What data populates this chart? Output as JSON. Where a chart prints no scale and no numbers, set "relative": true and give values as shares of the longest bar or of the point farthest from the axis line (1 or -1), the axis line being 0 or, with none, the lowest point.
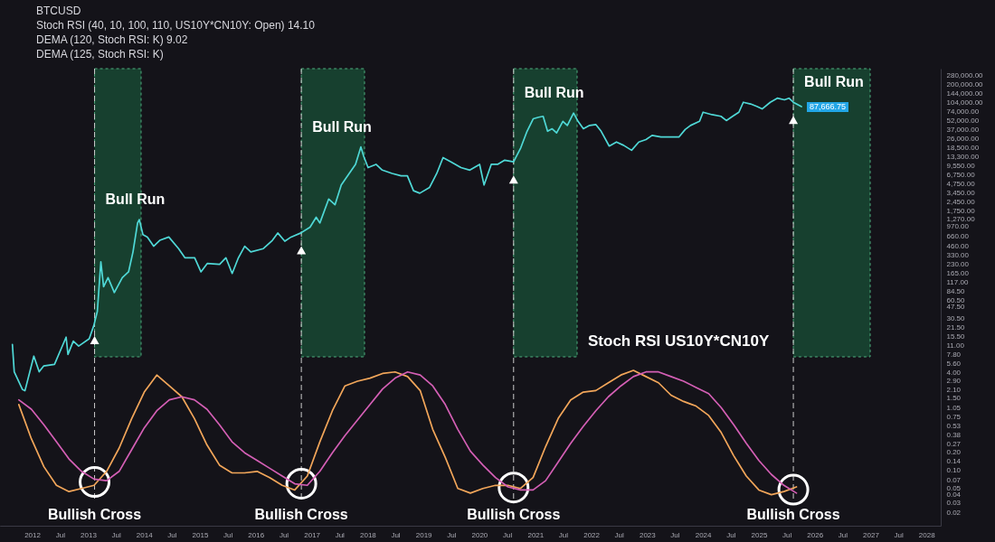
{
  "chart_data": [
    {
      "type": "line",
      "title": "BTCUSD",
      "annotations": [
        "Stoch RSI (40, 10, 100, 110, US10Y*CN10Y: Open) 14.10",
        "DEMA (120, Stoch RSI: K) 9.02",
        "DEMA (125, Stoch RSI: K)"
      ],
      "series": [
        {
          "color": "#4fd8d6",
          "x": [
            "2011-08-25",
            "2011-09-06",
            "2011-10-29",
            "2011-11-15",
            "2012-01-12",
            "2012-02-16",
            "2012-03-16",
            "2012-05-26",
            "2012-08-10",
            "2012-08-22",
            "2012-09-26",
            "2012-10-31",
            "2013-01-08",
            "2013-02-07",
            "2013-03-02",
            "2013-03-25",
            "2013-04-12",
            "2013-05-11",
            "2013-06-21",
            "2013-08-12",
            "2013-09-22",
            "2013-10-21",
            "2013-11-20",
            "2013-12-01",
            "2013-12-25",
            "2014-01-23",
            "2014-03-05",
            "2014-04-14",
            "2014-06-12",
            "2014-08-15",
            "2014-09-25",
            "2014-11-28",
            "2015-01-08",
            "2015-02-18",
            "2015-05-10",
            "2015-06-20",
            "2015-07-31",
            "2015-09-10",
            "2015-10-21",
            "2015-11-30",
            "2016-02-20",
            "2016-04-19",
            "2016-05-24",
            "2016-07-09",
            "2016-08-19",
            "2016-10-22",
            "2016-12-21",
            "2017-01-30",
            "2017-02-23",
            "2017-04-22",
            "2017-06-02",
            "2017-07-13",
            "2017-09-03",
            "2017-10-14",
            "2017-11-18",
            "2017-12-06",
            "2018-01-04",
            "2018-02-25",
            "2018-04-07",
            "2018-06-10",
            "2018-08-08",
            "2018-09-18",
            "2018-10-28",
            "2018-12-08",
            "2019-02-10",
            "2019-03-29",
            "2019-05-09",
            "2019-06-30",
            "2019-09-03",
            "2019-10-31",
            "2020-01-03",
            "2020-02-01",
            "2020-03-19",
            "2020-04-29",
            "2020-06-15",
            "2020-08-12",
            "2020-09-28",
            "2020-11-08",
            "2020-12-18",
            "2021-01-23",
            "2021-02-21",
            "2021-03-22",
            "2021-04-21",
            "2021-05-20",
            "2021-06-30",
            "2021-07-29",
            "2021-09-08",
            "2021-10-07",
            "2021-11-11",
            "2021-12-22",
            "2022-02-01",
            "2022-03-07",
            "2022-04-29",
            "2022-06-15",
            "2022-08-01",
            "2022-09-22",
            "2022-11-08",
            "2022-12-25",
            "2023-02-03",
            "2023-04-02",
            "2023-05-31",
            "2023-07-28",
            "2023-09-07",
            "2023-10-12",
            "2023-12-10",
            "2024-01-02",
            "2024-03-01",
            "2024-04-28",
            "2024-06-02",
            "2024-07-13",
            "2024-08-23",
            "2024-09-21",
            "2024-11-07",
            "2024-12-18",
            "2025-01-22",
            "2025-03-16",
            "2025-05-01",
            "2025-06-17",
            "2025-07-16",
            "2025-08-14",
            "2025-10-06"
          ],
          "values": [
            11.4,
            4.07,
            2.11,
            1.99,
            7.35,
            4.07,
            5.06,
            5.38,
            15.0,
            7.82,
            12.9,
            10.7,
            14.1,
            23.2,
            39.5,
            255,
            100,
            141,
            80.5,
            141,
            175,
            371,
            1100,
            1250,
            712,
            649,
            460,
            573,
            649,
            420,
            298,
            298,
            175,
            240,
            232,
            298,
            165,
            298,
            460,
            371,
            420,
            573,
            757,
            555,
            649,
            757,
            942,
            1370,
            1100,
            2715,
            2185,
            4600,
            7120,
            10000,
            19300,
            13700,
            8860,
            10000,
            8060,
            7120,
            6490,
            6490,
            3710,
            3380,
            4200,
            7120,
            12900,
            11000,
            8860,
            8060,
            10000,
            4600,
            10000,
            10000,
            11700,
            11000,
            18700,
            34800,
            55500,
            59100,
            61000,
            34800,
            38200,
            32700,
            50600,
            43300,
            69000,
            50600,
            38200,
            43300,
            44700,
            34800,
            19900,
            23200,
            20500,
            17000,
            23200,
            25500,
            29800,
            28000,
            28000,
            28000,
            37100,
            43300,
            50600,
            71200,
            64900,
            61000,
            52100,
            61000,
            71200,
            103500,
            97300,
            88500,
            80600,
            103500,
            120800,
            113500,
            120800,
            103500,
            87666.75
          ],
          "value_labels": [
            null,
            null,
            null,
            null,
            null,
            null,
            null,
            null,
            null,
            null,
            null,
            null,
            null,
            null,
            null,
            null,
            null,
            null,
            null,
            null,
            null,
            null,
            null,
            null,
            null,
            null,
            null,
            null,
            null,
            null,
            null,
            null,
            null,
            null,
            null,
            null,
            null,
            null,
            null,
            null,
            null,
            null,
            null,
            null,
            null,
            null,
            null,
            null,
            null,
            null,
            null,
            null,
            null,
            null,
            null,
            null,
            null,
            null,
            null,
            null,
            null,
            null,
            null,
            null,
            null,
            null,
            null,
            null,
            null,
            null,
            null,
            null,
            null,
            null,
            null,
            null,
            null,
            null,
            null,
            null,
            null,
            null,
            null,
            null,
            null,
            null,
            null,
            null,
            null,
            null,
            null,
            null,
            null,
            null,
            null,
            null,
            null,
            null,
            null,
            null,
            null,
            null,
            null,
            null,
            null,
            null,
            null,
            null,
            null,
            null,
            null,
            null,
            null,
            null,
            null,
            null,
            null,
            null,
            null,
            null,
            "87,666.75"
          ]
        }
      ],
      "log": true,
      "xlim": [
        "2011-06-05",
        "2028-04-03"
      ],
      "xticks": [
        "2012",
        {
          "value": "2012-07",
          "label": "Jul"
        },
        "2013",
        {
          "value": "2013-07",
          "label": "Jul"
        },
        "2014",
        {
          "value": "2014-07",
          "label": "Jul"
        },
        "2015",
        {
          "value": "2015-07",
          "label": "Jul"
        },
        "2016",
        {
          "value": "2016-07",
          "label": "Jul"
        },
        "2017",
        {
          "value": "2017-07",
          "label": "Jul"
        },
        "2018",
        {
          "value": "2018-07",
          "label": "Jul"
        },
        "2019",
        {
          "value": "2019-07",
          "label": "Jul"
        },
        "2020",
        {
          "value": "2020-07",
          "label": "Jul"
        },
        "2021",
        {
          "value": "2021-07",
          "label": "Jul"
        },
        "2022",
        {
          "value": "2022-07",
          "label": "Jul"
        },
        "2023",
        {
          "value": "2023-07",
          "label": "Jul"
        },
        "2024",
        {
          "value": "2024-07",
          "label": "Jul"
        },
        "2025",
        {
          "value": "2025-07",
          "label": "Jul"
        },
        "2026",
        {
          "value": "2026-07",
          "label": "Jul"
        },
        "2027",
        {
          "value": "2027-07",
          "label": "Jul"
        },
        "2028"
      ],
      "ylim": [
        0.0124,
        367000
      ],
      "yticks": [
        {
          "value": 280000,
          "label": "280,000.00"
        },
        {
          "value": 200000,
          "label": "200,000.00"
        },
        {
          "value": 144000,
          "label": "144,000.00"
        },
        {
          "value": 104000,
          "label": "104,000.00"
        },
        {
          "value": 74000,
          "label": "74,000.00"
        },
        {
          "value": 52000,
          "label": "52,000.00"
        },
        {
          "value": 37000,
          "label": "37,000.00"
        },
        {
          "value": 26000,
          "label": "26,000.00"
        },
        {
          "value": 18500,
          "label": "18,500.00"
        },
        {
          "value": 13300,
          "label": "13,300.00"
        },
        {
          "value": 9550,
          "label": "9,550.00"
        },
        {
          "value": 6750,
          "label": "6,750.00"
        },
        {
          "value": 4750,
          "label": "4,750.00"
        },
        {
          "value": 3450,
          "label": "3,450.00"
        },
        {
          "value": 2450,
          "label": "2,450.00"
        },
        {
          "value": 1750,
          "label": "1,750.00"
        },
        {
          "value": 1270,
          "label": "1,270.00"
        },
        {
          "value": 970,
          "label": "970.00"
        },
        {
          "value": 660,
          "label": "660.00"
        },
        {
          "value": 460,
          "label": "460.00"
        },
        {
          "value": 330,
          "label": "330.00"
        },
        {
          "value": 230,
          "label": "230.00"
        },
        {
          "value": 165,
          "label": "165.00"
        },
        {
          "value": 117,
          "label": "117.00"
        },
        {
          "value": 84.5,
          "label": "84.50"
        },
        {
          "value": 60.5,
          "label": "60.50"
        },
        {
          "value": 47.5,
          "label": "47.50"
        },
        {
          "value": 30.5,
          "label": "30.50"
        },
        {
          "value": 21.5,
          "label": "21.50"
        },
        {
          "value": 15.5,
          "label": "15.50"
        },
        {
          "value": 11,
          "label": "11.00"
        },
        {
          "value": 7.8,
          "label": "7.80"
        },
        {
          "value": 5.6,
          "label": "5.60"
        },
        {
          "value": 4,
          "label": "4.00"
        },
        {
          "value": 2.9,
          "label": "2.90"
        },
        {
          "value": 2.1,
          "label": "2.10"
        },
        {
          "value": 1.5,
          "label": "1.50"
        },
        {
          "value": 1.05,
          "label": "1.05"
        },
        {
          "value": 0.75,
          "label": "0.75"
        },
        {
          "value": 0.53,
          "label": "0.53"
        },
        {
          "value": 0.38,
          "label": "0.38"
        },
        {
          "value": 0.27,
          "label": "0.27"
        },
        {
          "value": 0.2,
          "label": "0.20"
        },
        {
          "value": 0.14,
          "label": "0.14"
        },
        {
          "value": 0.1,
          "label": "0.10"
        },
        {
          "value": 0.07,
          "label": "0.07"
        },
        {
          "value": 0.05,
          "label": "0.05"
        },
        {
          "value": 0.04,
          "label": "0.04"
        },
        {
          "value": 0.03,
          "label": "0.03"
        },
        {
          "value": 0.02,
          "label": "0.02"
        }
      ],
      "ref_lines": [
        {
          "axis": "x",
          "value": "2013-02-12",
          "label": "Bullish Cross",
          "color": "#cccccc",
          "line_style": "dashed"
        },
        {
          "axis": "x",
          "value": "2016-10-25",
          "label": "Bullish Cross",
          "color": "#cccccc",
          "line_style": "dashed"
        },
        {
          "axis": "x",
          "value": "2020-08-12",
          "label": "Bullish Cross",
          "color": "#cccccc",
          "line_style": "dashed"
        },
        {
          "axis": "x",
          "value": "2025-08-14",
          "label": "Bullish Cross",
          "color": "#cccccc",
          "line_style": "dashed"
        }
      ],
      "bands": [
        {
          "axis": "x",
          "from": "2013-02-12",
          "to": "2013-12-13",
          "label": "Bull Run",
          "color": "#17402f"
        },
        {
          "axis": "x",
          "from": "2016-10-25",
          "to": "2017-12-12",
          "label": "Bull Run",
          "color": "#17402f"
        },
        {
          "axis": "x",
          "from": "2020-08-12",
          "to": "2021-10-01",
          "label": "Bull Run",
          "color": "#17402f"
        },
        {
          "axis": "x",
          "from": "2025-08-14",
          "to": "2026-12-29",
          "label": "Bull Run",
          "color": "#17402f"
        }
      ]
    },
    {
      "type": "line",
      "title": "Stoch RSI US10Y*CN10Y",
      "relative": true,
      "categories": [
        null,
        null,
        null,
        null,
        null,
        null,
        null,
        null,
        null,
        null,
        null,
        null,
        null,
        null,
        null,
        null,
        null,
        null,
        null,
        null,
        null,
        null,
        null,
        null,
        null,
        null,
        null,
        null,
        null,
        null,
        null,
        null,
        null,
        null,
        null,
        null,
        null,
        null,
        null,
        null,
        null,
        null,
        null,
        null,
        null,
        null,
        null,
        null,
        null,
        null,
        null,
        null,
        null,
        null,
        null,
        null,
        null,
        null,
        null,
        null,
        null,
        null,
        null,
        null,
        null,
        null,
        null,
        null,
        null,
        null,
        null,
        null,
        null,
        null,
        null
      ],
      "series": [
        {
          "color": "#f2a65a",
          "values": [
            null,
            0.78,
            0.56,
            0.38,
            0.26,
            0.22,
            0.24,
            0.26,
            0.35,
            0.5,
            0.69,
            0.86,
            0.97,
            0.9,
            0.83,
            0.69,
            0.52,
            0.39,
            0.34,
            0.34,
            0.35,
            0.31,
            0.26,
            0.23,
            0.32,
            0.54,
            0.74,
            0.9,
            0.93,
            0.95,
            0.98,
            0.99,
            0.96,
            0.87,
            0.62,
            0.44,
            0.24,
            0.21,
            0.24,
            0.26,
            0.26,
            0.24,
            0.31,
            0.51,
            0.69,
            0.81,
            0.86,
            0.87,
            0.92,
            0.97,
            1,
            0.96,
            0.92,
            0.84,
            0.8,
            0.77,
            0.71,
            0.6,
            0.45,
            0.32,
            0.23,
            0.2,
            0.22,
            0.25,
            null,
            null,
            null,
            null,
            null,
            null,
            null,
            null,
            null,
            null,
            null
          ]
        },
        {
          "color": "#d45fb5",
          "values": [
            null,
            0.81,
            0.75,
            0.65,
            0.54,
            0.43,
            0.35,
            0.3,
            0.29,
            0.35,
            0.49,
            0.63,
            0.74,
            0.81,
            0.83,
            0.81,
            0.75,
            0.65,
            0.54,
            0.47,
            0.42,
            0.37,
            0.32,
            0.27,
            0.26,
            0.35,
            0.47,
            0.58,
            0.68,
            0.78,
            0.88,
            0.95,
            0.99,
            0.97,
            0.9,
            0.78,
            0.62,
            0.48,
            0.39,
            0.31,
            0.25,
            0.23,
            0.23,
            0.29,
            0.41,
            0.53,
            0.64,
            0.74,
            0.83,
            0.9,
            0.96,
            0.99,
            0.99,
            0.96,
            0.93,
            0.89,
            0.85,
            0.76,
            0.65,
            0.53,
            0.42,
            0.33,
            0.26,
            0.21,
            null,
            null,
            null,
            null,
            null,
            null,
            null,
            null,
            null,
            null,
            null
          ]
        }
      ]
    }
  ]
}
